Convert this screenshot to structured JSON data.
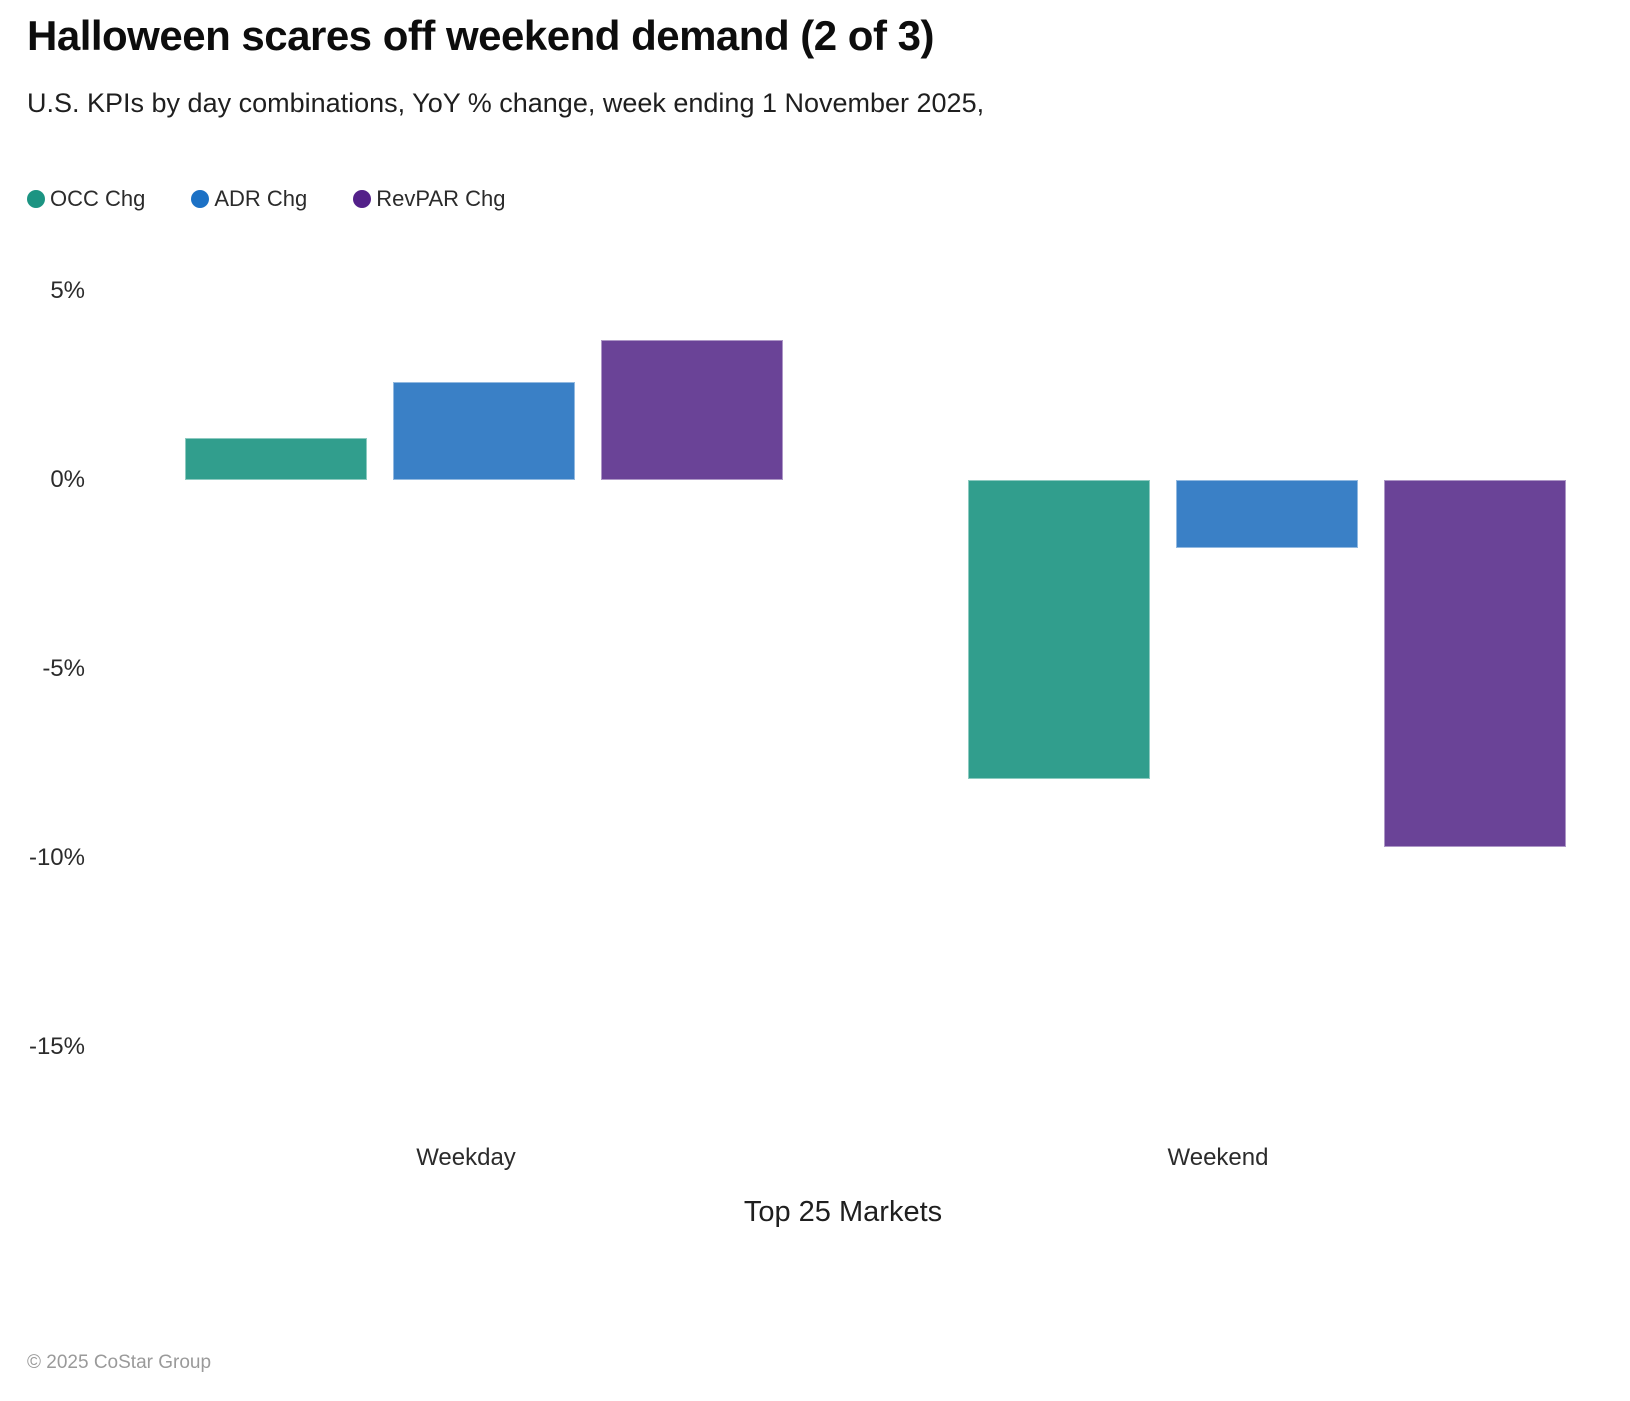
{
  "header": {
    "title": "Halloween scares off weekend demand (2 of 3)",
    "subtitle": "U.S. KPIs by day combinations, YoY % change, week ending 1 November 2025,"
  },
  "chart_data": {
    "type": "bar",
    "title": "Halloween scares off weekend demand (2 of 3)",
    "subtitle": "U.S. KPIs by day combinations, YoY % change, week ending 1 November 2025,",
    "categories": [
      "Weekday",
      "Weekend"
    ],
    "series": [
      {
        "name": "OCC Chg",
        "values": [
          1.1,
          -7.9
        ],
        "color": "#319e8d",
        "legend_color": "#1c9482"
      },
      {
        "name": "ADR Chg",
        "values": [
          2.6,
          -1.8
        ],
        "color": "#3a80c6",
        "legend_color": "#1c71c5"
      },
      {
        "name": "RevPAR Chg",
        "values": [
          3.7,
          -9.7
        ],
        "color": "#6a4397",
        "legend_color": "#532089"
      }
    ],
    "xlabel": "Top 25 Markets",
    "ylabel": "",
    "unit": "YoY % change",
    "y_ticks": [
      {
        "label": "5%",
        "value": 5
      },
      {
        "label": "0%",
        "value": 0
      },
      {
        "label": "-5%",
        "value": -5
      },
      {
        "label": "-10%",
        "value": -10
      },
      {
        "label": "-15%",
        "value": -15
      }
    ],
    "ylim": [
      -15,
      5
    ],
    "grid": false,
    "legend_position": "top-left"
  },
  "footer": {
    "copyright": "© 2025 CoStar Group"
  }
}
